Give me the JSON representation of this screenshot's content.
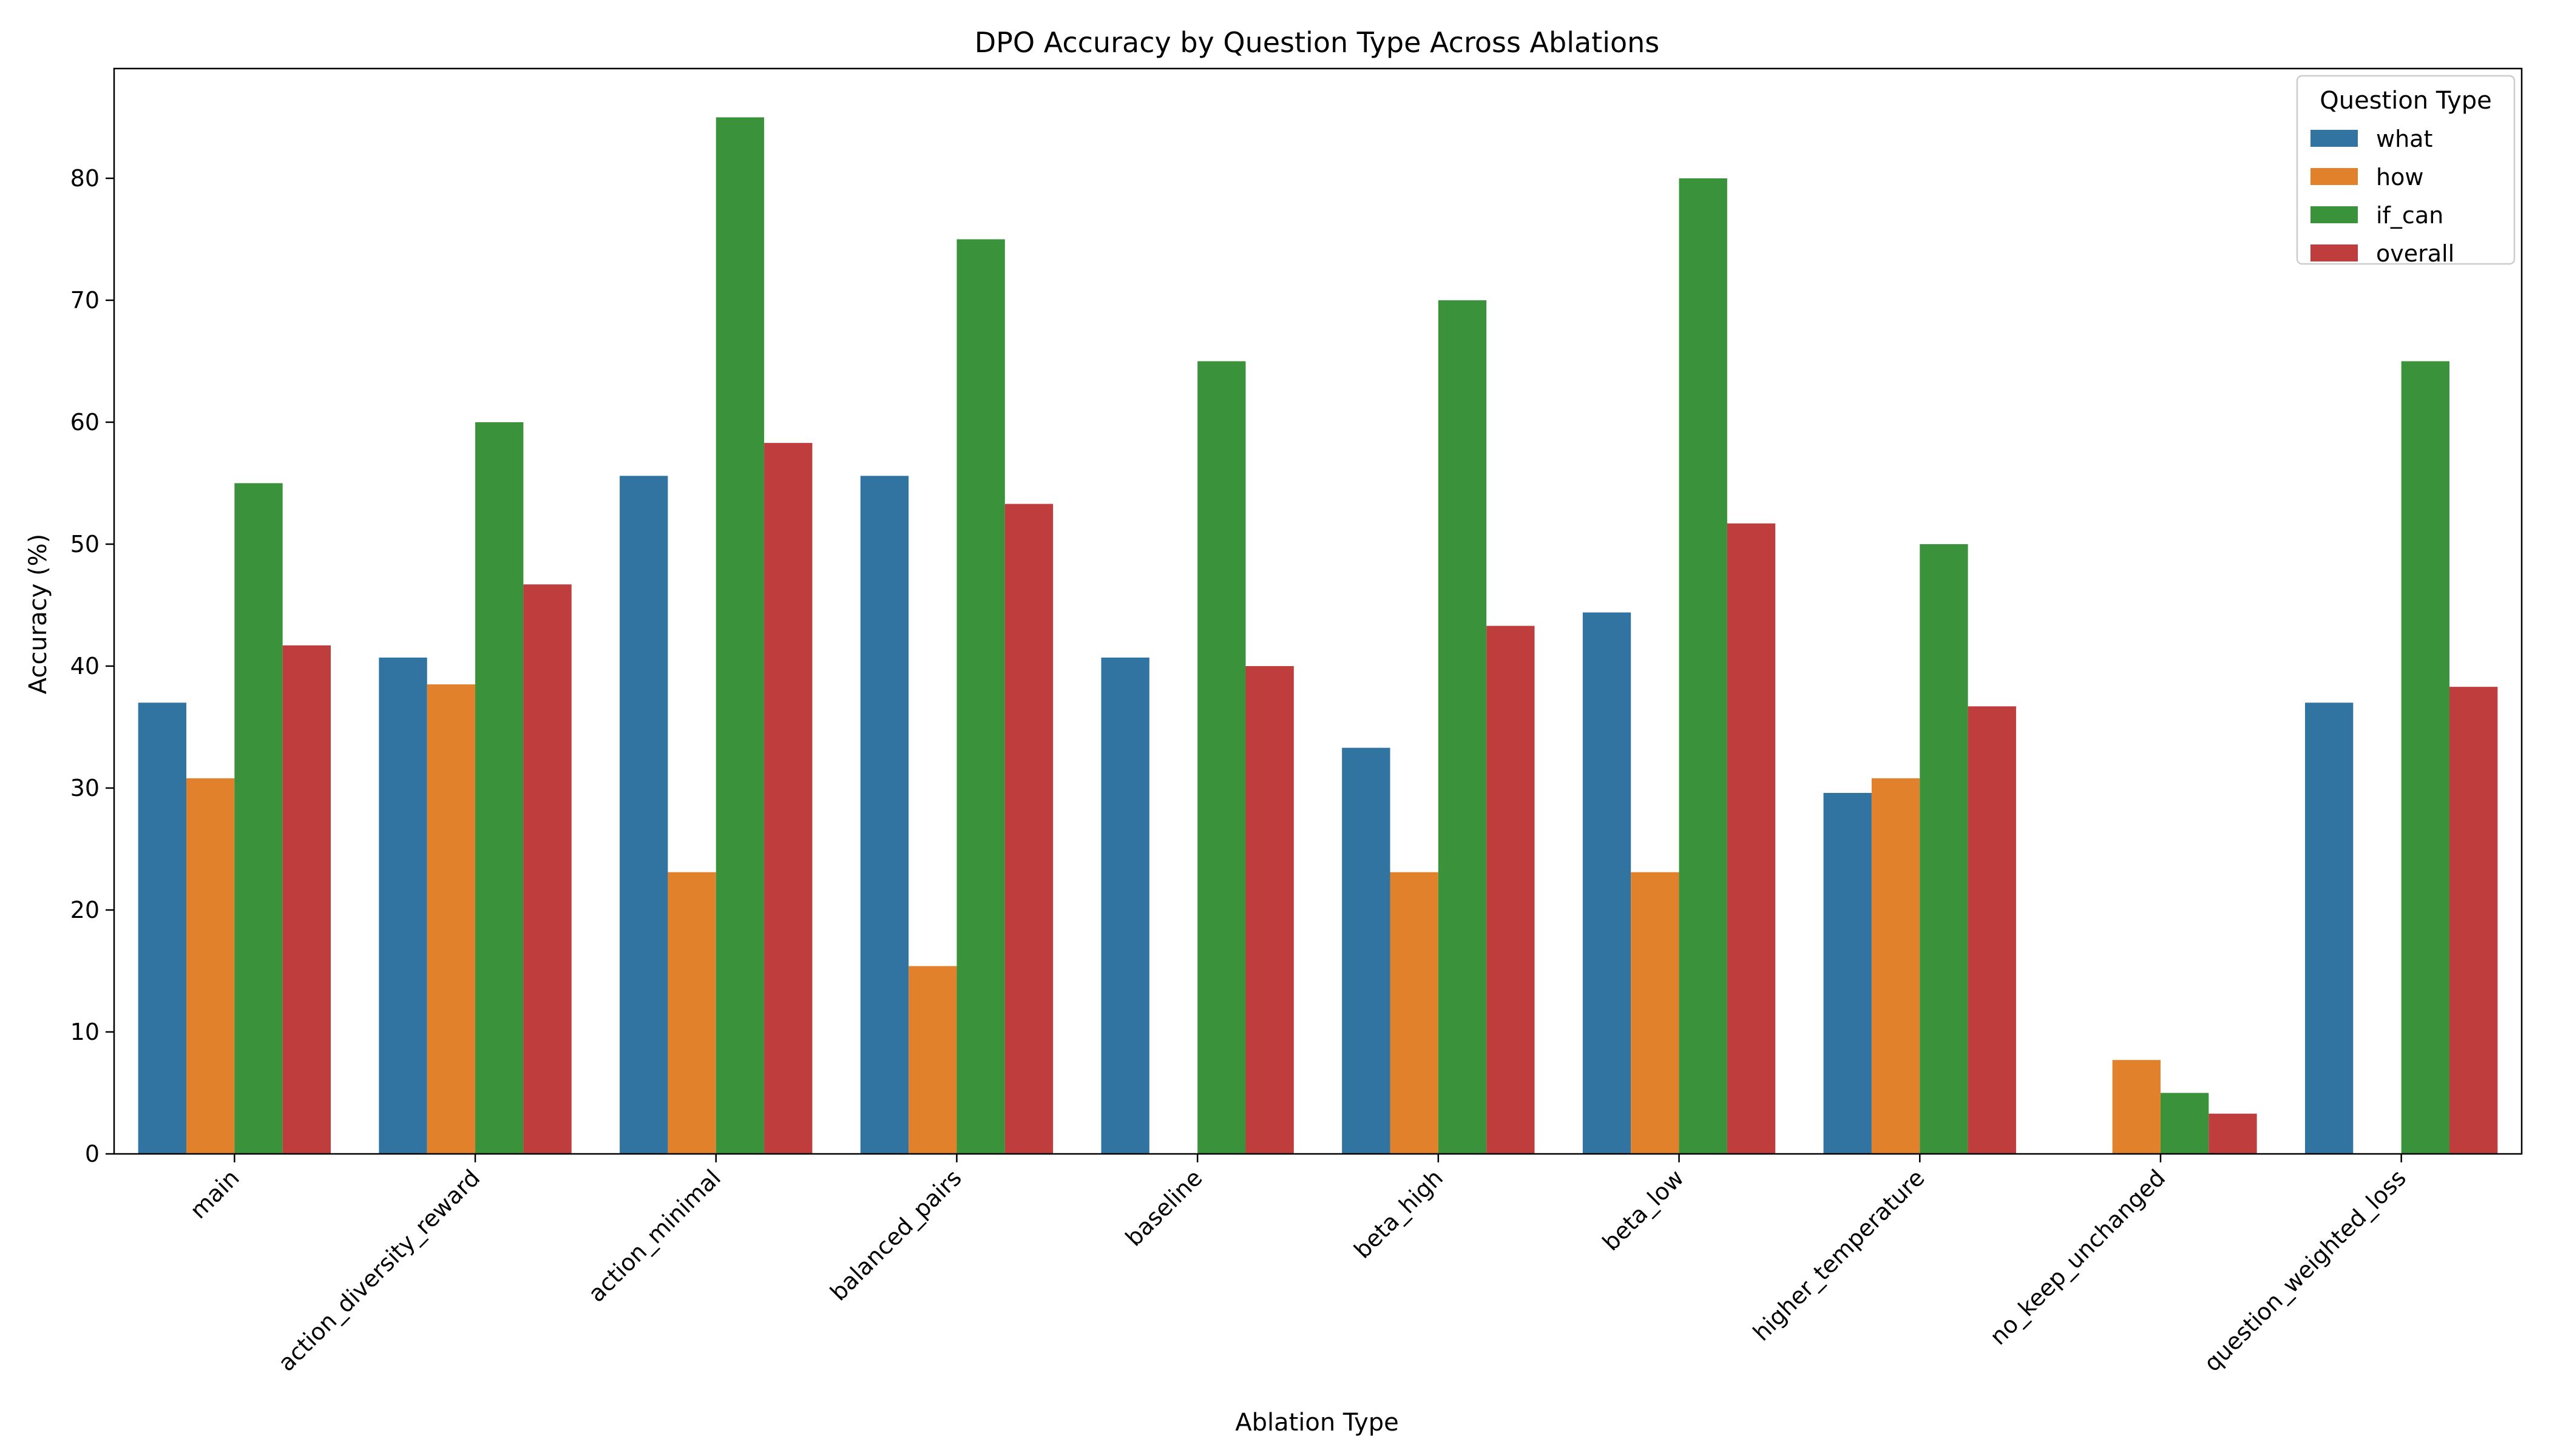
{
  "chart_data": {
    "type": "bar",
    "title": "DPO Accuracy by Question Type Across Ablations",
    "xlabel": "Ablation Type",
    "ylabel": "Accuracy (%)",
    "ylim": [
      0,
      89
    ],
    "yticks": [
      0,
      10,
      20,
      30,
      40,
      50,
      60,
      70,
      80
    ],
    "grid": false,
    "legend": {
      "title": "Question Type",
      "placement": "top-right"
    },
    "categories": [
      "main",
      "action_diversity_reward",
      "action_minimal",
      "balanced_pairs",
      "baseline",
      "beta_high",
      "beta_low",
      "higher_temperature",
      "no_keep_unchanged",
      "question_weighted_loss"
    ],
    "series": [
      {
        "name": "what",
        "color": "#3274a1",
        "values": [
          37.0,
          40.7,
          55.6,
          55.6,
          40.7,
          33.3,
          44.4,
          29.6,
          0,
          37.0
        ]
      },
      {
        "name": "how",
        "color": "#e1812c",
        "values": [
          30.8,
          38.5,
          23.1,
          15.4,
          0,
          23.1,
          23.1,
          30.8,
          7.7,
          0
        ]
      },
      {
        "name": "if_can",
        "color": "#3a923a",
        "values": [
          55.0,
          60.0,
          85.0,
          75.0,
          65.0,
          70.0,
          80.0,
          50.0,
          5.0,
          65.0
        ]
      },
      {
        "name": "overall",
        "color": "#c03d3e",
        "values": [
          41.7,
          46.7,
          58.3,
          53.3,
          40.0,
          43.3,
          51.7,
          36.7,
          3.3,
          38.3
        ]
      }
    ]
  }
}
